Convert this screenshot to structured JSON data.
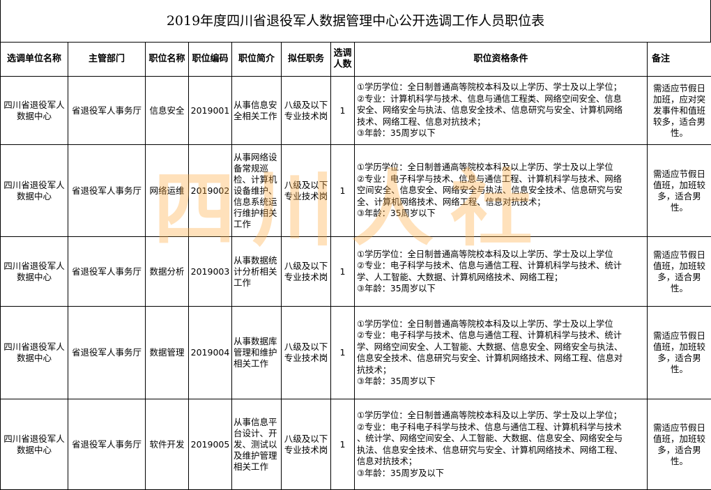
{
  "title": "2019年度四川省退役军人数据管理中心公开选调工作人员职位表",
  "watermark": "四川人社",
  "headers": [
    "选调单位名称",
    "主管部门",
    "职位名称",
    "职位编码",
    "职位简介",
    "拟任职务",
    "选调人数",
    "职位资格条件",
    "备注"
  ],
  "rows": [
    {
      "unit": "四川省退役军人数据中心",
      "dept": "省退役军人事务厅",
      "position": "信息安全",
      "code": "2019001",
      "intro": "从事信息安全相关工作",
      "duty": "八级及以下专业技术岗",
      "count": "1",
      "requirements": [
        "①学历学位：全日制普通高等院校本科及以上学历、学士及以上学位；",
        "②专业：计算机科学与技术、信息与通信工程类、网络空间安全、信息",
        "安全、网络安全与执法、信息安全技术、信息研究与安全、计算机网络",
        "技术、网络工程、信息对抗技术；",
        "③年龄：35周岁以下"
      ],
      "note": "需适应节假日加班，应对突发事件和值班较多，适合男性。"
    },
    {
      "unit": "四川省退役军人数据中心",
      "dept": "省退役军人事务厅",
      "position": "网络运维",
      "code": "2019002",
      "intro": "从事网络设备常规巡检、计算机设备维护、信息系统运行维护相关工作",
      "duty": "八级及以下专业技术岗",
      "count": "1",
      "requirements": [
        "①学历学位：全日制普通高等院校本科及以上学历、学士及以上学位",
        "②专业：电子科学与技术、信息与通信工程、计算机科学与技术、网络",
        "空间安全、信息安全、网络安全与执法、信息安全技术、信息研究与安",
        "全、计算机网络技术、网络工程、信息对抗技术；",
        "③年龄：35周岁以下"
      ],
      "note": "需适应节假日值班，加班较多，适合男性。"
    },
    {
      "unit": "四川省退役军人数据中心",
      "dept": "省退役军人事务厅",
      "position": "数据分析",
      "code": "2019003",
      "intro": "从事数据统计分析相关工作",
      "duty": "八级及以下专业技术岗",
      "count": "1",
      "requirements": [
        "①学历学位：全日制普通高等院校本科及以上学历、学士及以上学位",
        "②专业：电子科学与技术、信息与通信工程、计算机科学与技术、统计",
        "学、人工智能、大数据、计算机网络技术、网络工程；",
        "③年龄：35周岁以下"
      ],
      "note": "需适应节假日值班，加班较多，适合男性。"
    },
    {
      "unit": "四川省退役军人数据中心",
      "dept": "省退役军人事务厅",
      "position": "数据管理",
      "code": "2019004",
      "intro": "从事数据库管理和维护相关工作",
      "duty": "八级及以下专业技术岗",
      "count": "1",
      "requirements": [
        "①学历学位：全日制普通高等院校本科及以上学历、学士及以上学位",
        "②专业：电子科学与技术、信息与通信工程、计算机科学与技术、统计",
        "学、网络空间安全、人工智能、大数据、信息安全、网络安全与执法、",
        "信息安全技术、信息研究与安全、计算机网络技术、网络工程、信息对",
        "抗技术；",
        "③年龄：35周岁以下"
      ],
      "note": "需适应节假日值班，加班较多，适合男性。"
    },
    {
      "unit": "四川省退役军人数据中心",
      "dept": "省退役军人事务厅",
      "position": "软件开发",
      "code": "2019005",
      "intro": "从事信息平台设计、开发、测试以及维护管理相关工作",
      "duty": "八级及以下专业技术岗",
      "count": "1",
      "requirements": [
        "①学历学位：全日制普通高等院校本科及以上学历、学士及以上学位；",
        "②专业：电子科电子科学与技术、信息与通信工程、计算机科学与技术",
        "、统计学、网络空间安全、人工智能、大数据、信息安全、网络安全与",
        "执法、信息安全技术、信息研究与安全、计算机网络技术、网络工程、",
        "信息对抗技术；",
        "③年龄：35周岁及以下"
      ],
      "note": "需适应节假日值班，加班较多，适合男性。"
    }
  ]
}
